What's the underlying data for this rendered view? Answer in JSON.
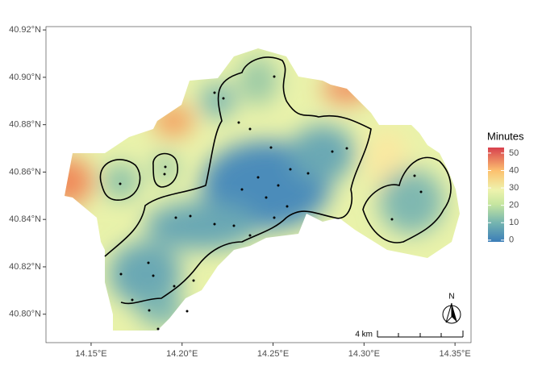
{
  "map": {
    "xlim": [
      14.1252,
      14.3588
    ],
    "ylim": [
      40.788,
      40.9214
    ],
    "xticks": [
      {
        "value": 14.15,
        "label": "14.15°E"
      },
      {
        "value": 14.2,
        "label": "14.20°E"
      },
      {
        "value": 14.25,
        "label": "14.25°E"
      },
      {
        "value": 14.3,
        "label": "14.30°E"
      },
      {
        "value": 14.35,
        "label": "14.35°E"
      }
    ],
    "yticks": [
      {
        "value": 40.8,
        "label": "40.80°N"
      },
      {
        "value": 40.82,
        "label": "40.82°N"
      },
      {
        "value": 40.84,
        "label": "40.84°N"
      },
      {
        "value": 40.86,
        "label": "40.86°N"
      },
      {
        "value": 40.88,
        "label": "40.88°N"
      },
      {
        "value": 40.9,
        "label": "40.90°N"
      },
      {
        "value": 40.92,
        "label": "40.92°N"
      }
    ],
    "legend": {
      "title": "Minutes",
      "range": [
        -1,
        53.2
      ],
      "ticks": [
        0,
        10,
        20,
        30,
        40,
        50
      ]
    },
    "scale_bar": "4 km",
    "north": "N"
  }
}
